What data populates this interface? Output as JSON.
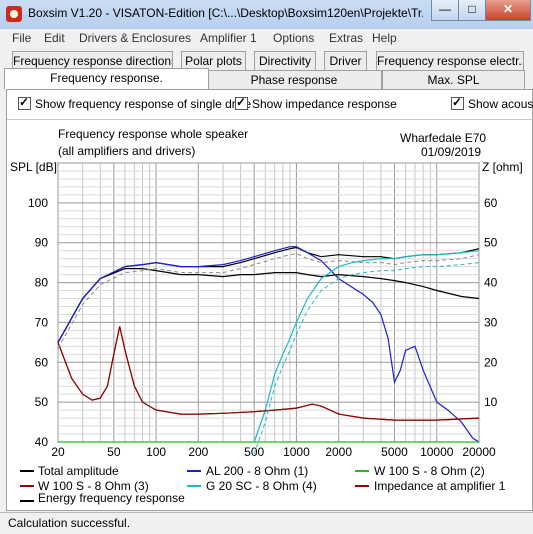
{
  "window": {
    "title": "Boxsim V1.20 - VISATON-Edition [C:\\...\\Desktop\\Boxsim120en\\Projekte\\Tr...",
    "minimize": "—",
    "maximize": "□",
    "close": "✕"
  },
  "menu": [
    "File",
    "Edit",
    "Drivers & Enclosures",
    "Amplifier 1",
    "Options",
    "Extras",
    "Help"
  ],
  "tabs_row1": [
    "Frequency response directions",
    "Polar plots",
    "Directivity",
    "Driver",
    "Frequency response electr.."
  ],
  "tabs_row2": [
    "Frequency response.",
    "Phase response",
    "Max. SPL"
  ],
  "checkboxes": [
    "Show frequency response of single drive",
    "Show impedance response",
    "Show acous"
  ],
  "chart_header": {
    "title": "Frequency response whole speaker",
    "subtitle": "(all amplifiers and drivers)",
    "model": "Wharfedale E70",
    "date": "01/09/2019"
  },
  "status": "Calculation successful.",
  "chart_data": {
    "type": "line",
    "ylabel": "SPL [dB]",
    "y2label": "Z [ohm]",
    "ylim": [
      40,
      110
    ],
    "y2lim": [
      0,
      70
    ],
    "xlim": [
      20,
      20000
    ],
    "xscale": "log",
    "xticks": [
      "20",
      "50",
      "100",
      "200",
      "500",
      "1000",
      "2000",
      "5000",
      "10000",
      "20000"
    ],
    "yticks": [
      "40",
      "50",
      "60",
      "70",
      "80",
      "90",
      "100"
    ],
    "y2ticks": [
      "10",
      "20",
      "30",
      "40",
      "50",
      "60"
    ],
    "grid": true,
    "colors": {
      "total": "#000000",
      "al200": "#1f1fcc",
      "w100s_2": "#22bb22",
      "w100s_3": "#8a0a0a",
      "g20sc": "#1fb8c8",
      "impedance": "#8a0a0a",
      "energy": "#000000"
    },
    "legend": [
      "Total amplitude",
      "AL 200 - 8 Ohm (1)",
      "W 100 S - 8 Ohm (2)",
      "W 100 S - 8 Ohm (3)",
      "G 20 SC - 8 Ohm (4)",
      "Impedance at amplifier 1",
      "Energy frequency response"
    ],
    "series": [
      {
        "name": "Total amplitude",
        "color": "#000000",
        "x": [
          20,
          30,
          40,
          60,
          80,
          100,
          150,
          200,
          300,
          400,
          500,
          700,
          900,
          1000,
          1200,
          1500,
          2000,
          3000,
          4000,
          5000,
          6000,
          8000,
          10000,
          15000,
          20000
        ],
        "y": [
          65,
          76,
          81,
          84,
          84.5,
          85,
          84,
          84,
          84,
          85,
          86,
          87.5,
          88.5,
          88.8,
          87.5,
          86.5,
          87,
          86.5,
          86.5,
          86,
          86.5,
          87,
          87,
          87.5,
          88.5
        ]
      },
      {
        "name": "Energy frequency response",
        "color": "#000000",
        "x": [
          20,
          30,
          40,
          60,
          80,
          100,
          150,
          200,
          300,
          400,
          500,
          700,
          900,
          1000,
          1200,
          1500,
          2000,
          3000,
          4000,
          5000,
          6000,
          8000,
          10000,
          15000,
          20000
        ],
        "y": [
          65,
          76,
          81,
          83.5,
          83.5,
          83,
          82,
          82,
          81.5,
          82,
          82,
          82.5,
          82.5,
          82.5,
          82,
          81.5,
          82,
          81.5,
          81,
          80.5,
          80,
          79,
          78,
          76.5,
          76
        ]
      },
      {
        "name": "AL 200 - 8 Ohm (1)",
        "color": "#1f1fcc",
        "x": [
          20,
          30,
          40,
          60,
          80,
          100,
          150,
          200,
          300,
          400,
          500,
          700,
          900,
          1000,
          1200,
          1500,
          2000,
          3000,
          3500,
          4000,
          4500,
          5000,
          5500,
          6000,
          7000,
          8000,
          10000,
          12000,
          15000,
          18000,
          20000
        ],
        "y": [
          65,
          76,
          81,
          84,
          84.5,
          85,
          84,
          84,
          84.5,
          85.5,
          86.5,
          88,
          89,
          89,
          87.5,
          85.5,
          81,
          77,
          75,
          72,
          66,
          55,
          58,
          63,
          64,
          58,
          50,
          48,
          45,
          41,
          40
        ]
      },
      {
        "name": "G 20 SC - 8 Ohm (4)",
        "color": "#1fb8c8",
        "x": [
          500,
          600,
          700,
          800,
          900,
          1000,
          1200,
          1500,
          2000,
          2500,
          3000,
          4000,
          5000,
          6000,
          8000,
          10000,
          15000,
          20000
        ],
        "y": [
          40,
          48,
          57,
          62,
          66,
          70,
          76,
          81,
          84,
          85,
          85.5,
          86,
          86,
          86.5,
          87,
          87,
          87.5,
          88
        ]
      },
      {
        "name": "Impedance at amplifier 1",
        "color": "#8a0a0a",
        "axis": "right",
        "x": [
          20,
          25,
          30,
          35,
          40,
          45,
          50,
          55,
          60,
          70,
          80,
          100,
          150,
          200,
          300,
          500,
          700,
          1000,
          1300,
          1500,
          2000,
          3000,
          5000,
          10000,
          20000
        ],
        "y": [
          25,
          16,
          12,
          10.5,
          11,
          14,
          22,
          29,
          23,
          14,
          10,
          8,
          7,
          7,
          7.2,
          7.6,
          8,
          8.5,
          9.5,
          9,
          7,
          6,
          5.5,
          5.5,
          6
        ]
      },
      {
        "name": "W 100 S - 8 Ohm (3)",
        "color": "#8a0a0a",
        "x": [
          20,
          25,
          30,
          35,
          40,
          45,
          50,
          55,
          60,
          70,
          80,
          100,
          150,
          200,
          300,
          500,
          700,
          1000,
          1300,
          1500,
          2000,
          3000,
          5000,
          10000,
          20000
        ],
        "y": [
          65,
          56,
          52,
          50.5,
          51,
          54,
          62,
          69,
          63,
          54,
          50,
          48,
          47,
          47,
          47.2,
          47.6,
          48,
          48.5,
          49.5,
          49,
          47,
          46,
          45.5,
          45.5,
          46
        ]
      },
      {
        "name": "W 100 S - 8 Ohm (2)",
        "color": "#22bb22",
        "x": [
          20,
          20000
        ],
        "y": [
          40,
          40
        ]
      }
    ]
  }
}
